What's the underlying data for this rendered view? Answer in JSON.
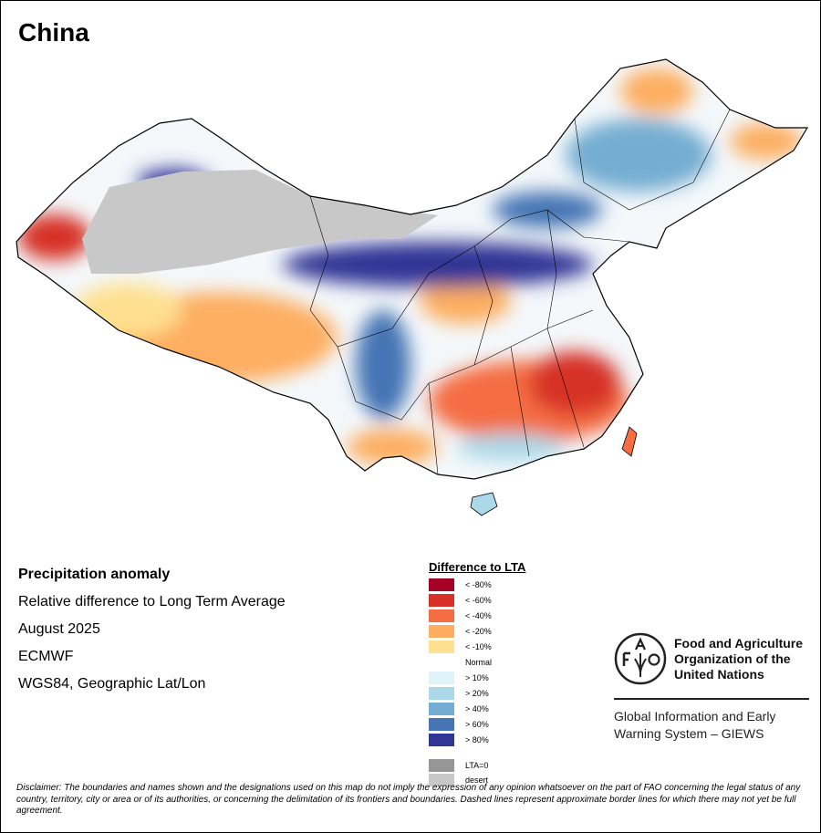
{
  "title": "China",
  "info": {
    "heading": "Precipitation anomaly",
    "subtitle": "Relative difference to Long Term Average",
    "period": "August 2025",
    "source": "ECMWF",
    "projection": "WGS84, Geographic Lat/Lon"
  },
  "legend": {
    "title": "Difference to LTA",
    "items": [
      {
        "label": "< -80%",
        "color": "#a50026"
      },
      {
        "label": "< -60%",
        "color": "#d73027"
      },
      {
        "label": "< -40%",
        "color": "#f46d43"
      },
      {
        "label": "< -20%",
        "color": "#fdae61"
      },
      {
        "label": "< -10%",
        "color": "#fee090"
      },
      {
        "label": "Normal",
        "color": "#ffffff"
      },
      {
        "label": "> 10%",
        "color": "#e0f3f8"
      },
      {
        "label": "> 20%",
        "color": "#abd9e9"
      },
      {
        "label": "> 40%",
        "color": "#74add1"
      },
      {
        "label": "> 60%",
        "color": "#4575b4"
      },
      {
        "label": "> 80%",
        "color": "#313695"
      },
      {
        "label": "LTA=0",
        "color": "#969696"
      },
      {
        "label": "desert",
        "color": "#c8c8c8"
      }
    ]
  },
  "fao": {
    "logo_text": "FAO FIAT PANIS",
    "name_lines": [
      "Food and Agriculture",
      "Organization of the",
      "United Nations"
    ],
    "giews_lines": [
      "Global Information and Early",
      "Warning System – GIEWS"
    ]
  },
  "disclaimer": "Disclaimer: The boundaries and names shown and the designations used on this map do not imply the expression of any opinion whatsoever on the part of FAO concerning the legal status of any country, territory, city or area or of its authorities, or concerning the delimitation of its frontiers and boundaries. Dashed lines represent approximate border lines for which there may not yet be full agreement."
}
